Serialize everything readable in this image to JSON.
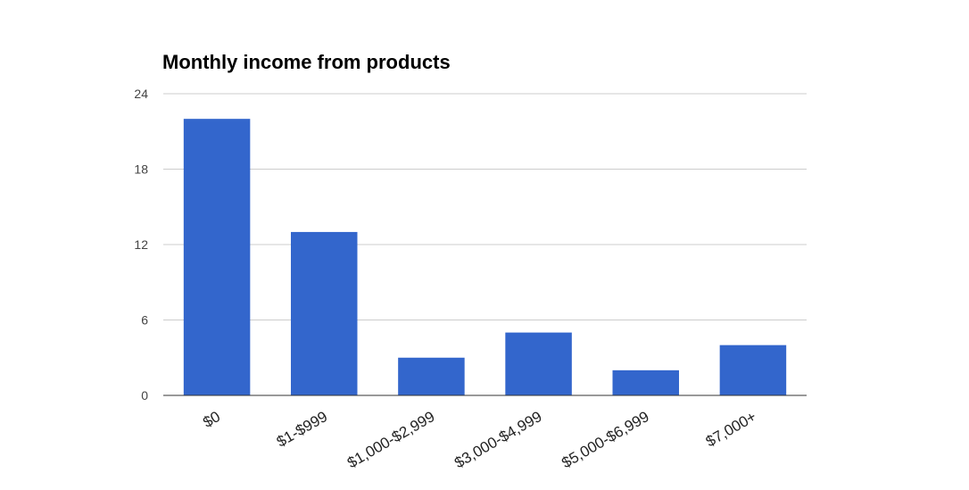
{
  "chart_data": {
    "type": "bar",
    "title": "Monthly income from products",
    "xlabel": "",
    "ylabel": "",
    "categories": [
      "$0",
      "$1-$999",
      "$1,000-$2,999",
      "$3,000-$4,999",
      "$5,000-$6,999",
      "$7,000+"
    ],
    "values": [
      22,
      13,
      3,
      5,
      2,
      4
    ],
    "ylim": [
      0,
      24
    ],
    "yticks": [
      0,
      6,
      12,
      18,
      24
    ],
    "grid": true,
    "legend": "none",
    "bar_color": "#3366cc"
  }
}
